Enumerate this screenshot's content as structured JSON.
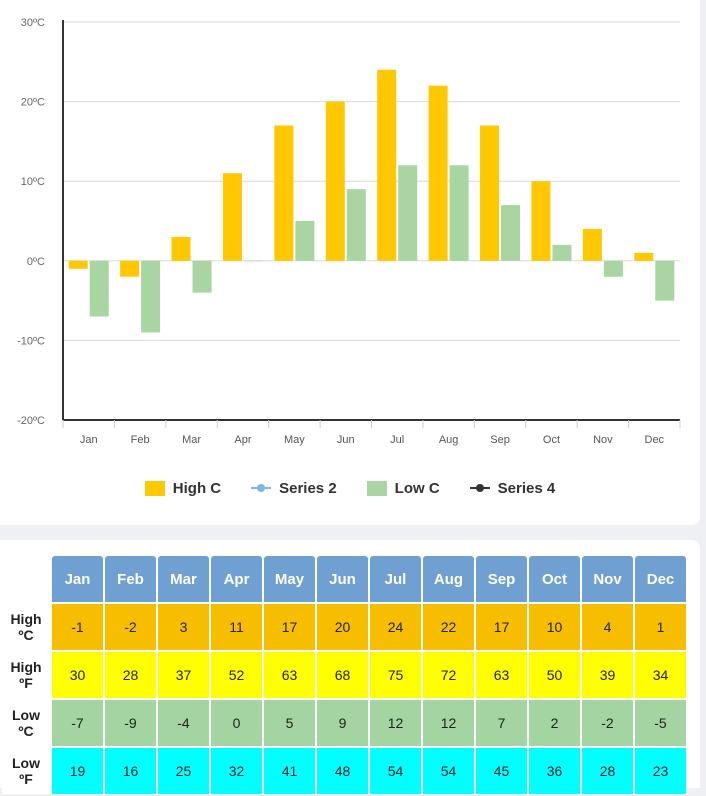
{
  "chart_data": {
    "type": "bar",
    "categories": [
      "Jan",
      "Feb",
      "Mar",
      "Apr",
      "May",
      "Jun",
      "Jul",
      "Aug",
      "Sep",
      "Oct",
      "Nov",
      "Dec"
    ],
    "series": [
      {
        "name": "High C",
        "values": [
          -1,
          -2,
          3,
          11,
          17,
          20,
          24,
          22,
          17,
          10,
          4,
          1
        ],
        "color": "#ffc800"
      },
      {
        "name": "Low C",
        "values": [
          -7,
          -9,
          -4,
          0,
          5,
          9,
          12,
          12,
          7,
          2,
          -2,
          -5
        ],
        "color": "#a8d5a2"
      }
    ],
    "ylim": [
      -20,
      30
    ],
    "yticks": [
      -20,
      -10,
      0,
      10,
      20,
      30
    ],
    "ytick_labels": [
      "-20ºC",
      "-10ºC",
      "0ºC",
      "10ºC",
      "20ºC",
      "30ºC"
    ],
    "grid": true,
    "legend_position": "bottom",
    "legend": [
      {
        "label": "High C",
        "color": "#ffc800",
        "kind": "box"
      },
      {
        "label": "Series 2",
        "color": "#7cb5ec",
        "kind": "line"
      },
      {
        "label": "Low C",
        "color": "#a8d5a2",
        "kind": "box"
      },
      {
        "label": "Series 4",
        "color": "#333333",
        "kind": "line"
      }
    ]
  },
  "table": {
    "months": [
      "Jan",
      "Feb",
      "Mar",
      "Apr",
      "May",
      "Jun",
      "Jul",
      "Aug",
      "Sep",
      "Oct",
      "Nov",
      "Dec"
    ],
    "rows": [
      {
        "key": "highc",
        "label_line1": "High",
        "label_line2": "ºC",
        "values": [
          "-1",
          "-2",
          "3",
          "11",
          "17",
          "20",
          "24",
          "22",
          "17",
          "10",
          "4",
          "1"
        ]
      },
      {
        "key": "highf",
        "label_line1": "High",
        "label_line2": "ºF",
        "values": [
          "30",
          "28",
          "37",
          "52",
          "63",
          "68",
          "75",
          "72",
          "63",
          "50",
          "39",
          "34"
        ]
      },
      {
        "key": "lowc",
        "label_line1": "Low",
        "label_line2": "ºC",
        "values": [
          "-7",
          "-9",
          "-4",
          "0",
          "5",
          "9",
          "12",
          "12",
          "7",
          "2",
          "-2",
          "-5"
        ]
      },
      {
        "key": "lowf",
        "label_line1": "Low",
        "label_line2": "ºF",
        "values": [
          "19",
          "16",
          "25",
          "32",
          "41",
          "48",
          "54",
          "54",
          "45",
          "36",
          "28",
          "23"
        ]
      }
    ]
  }
}
